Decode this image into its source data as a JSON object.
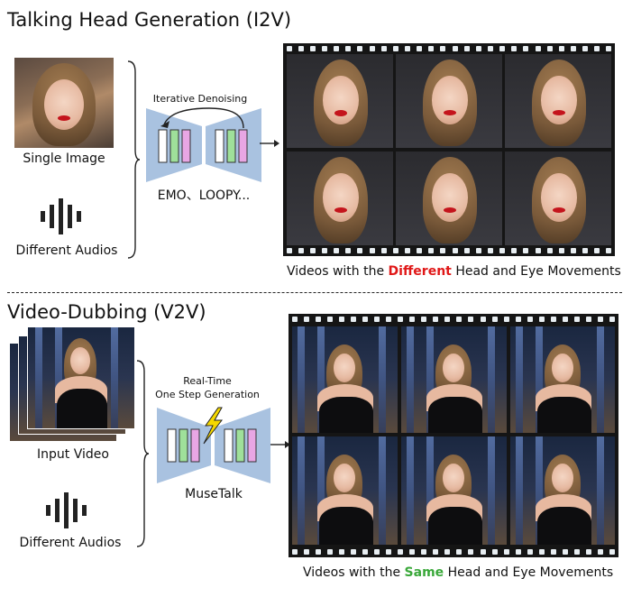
{
  "i2v": {
    "title": "Talking Head Generation (I2V)",
    "single_image_label": "Single Image",
    "audio_label": "Different Audios",
    "iterative_label": "Iterative Denoising",
    "model_label": "EMO、LOOPY...",
    "caption_before": "Videos with the ",
    "caption_highlight": "Different",
    "caption_after": " Head and Eye Movements"
  },
  "v2v": {
    "title": "Video-Dubbing (V2V)",
    "input_label": "Input Video",
    "audio_label": "Different Audios",
    "realtime_line1": "Real-Time",
    "realtime_line2": "One Step Generation",
    "model_label": "MuseTalk",
    "caption_before": "Videos with the ",
    "caption_highlight": "Same",
    "caption_after": " Head and Eye Movements"
  },
  "colors": {
    "unet_blue": "#a9c2e0",
    "bar_white": "#ffffff",
    "bar_green": "#9fe09a",
    "bar_pink": "#e8a6e4",
    "highlight_red": "#e01818",
    "highlight_green": "#3aa83a",
    "lightning": "#f5d800"
  },
  "icons": {
    "audio": "sound-wave-icon",
    "arrow": "right-arrow-icon",
    "lightning": "lightning-bolt-icon",
    "loop": "curved-arrow-icon"
  }
}
